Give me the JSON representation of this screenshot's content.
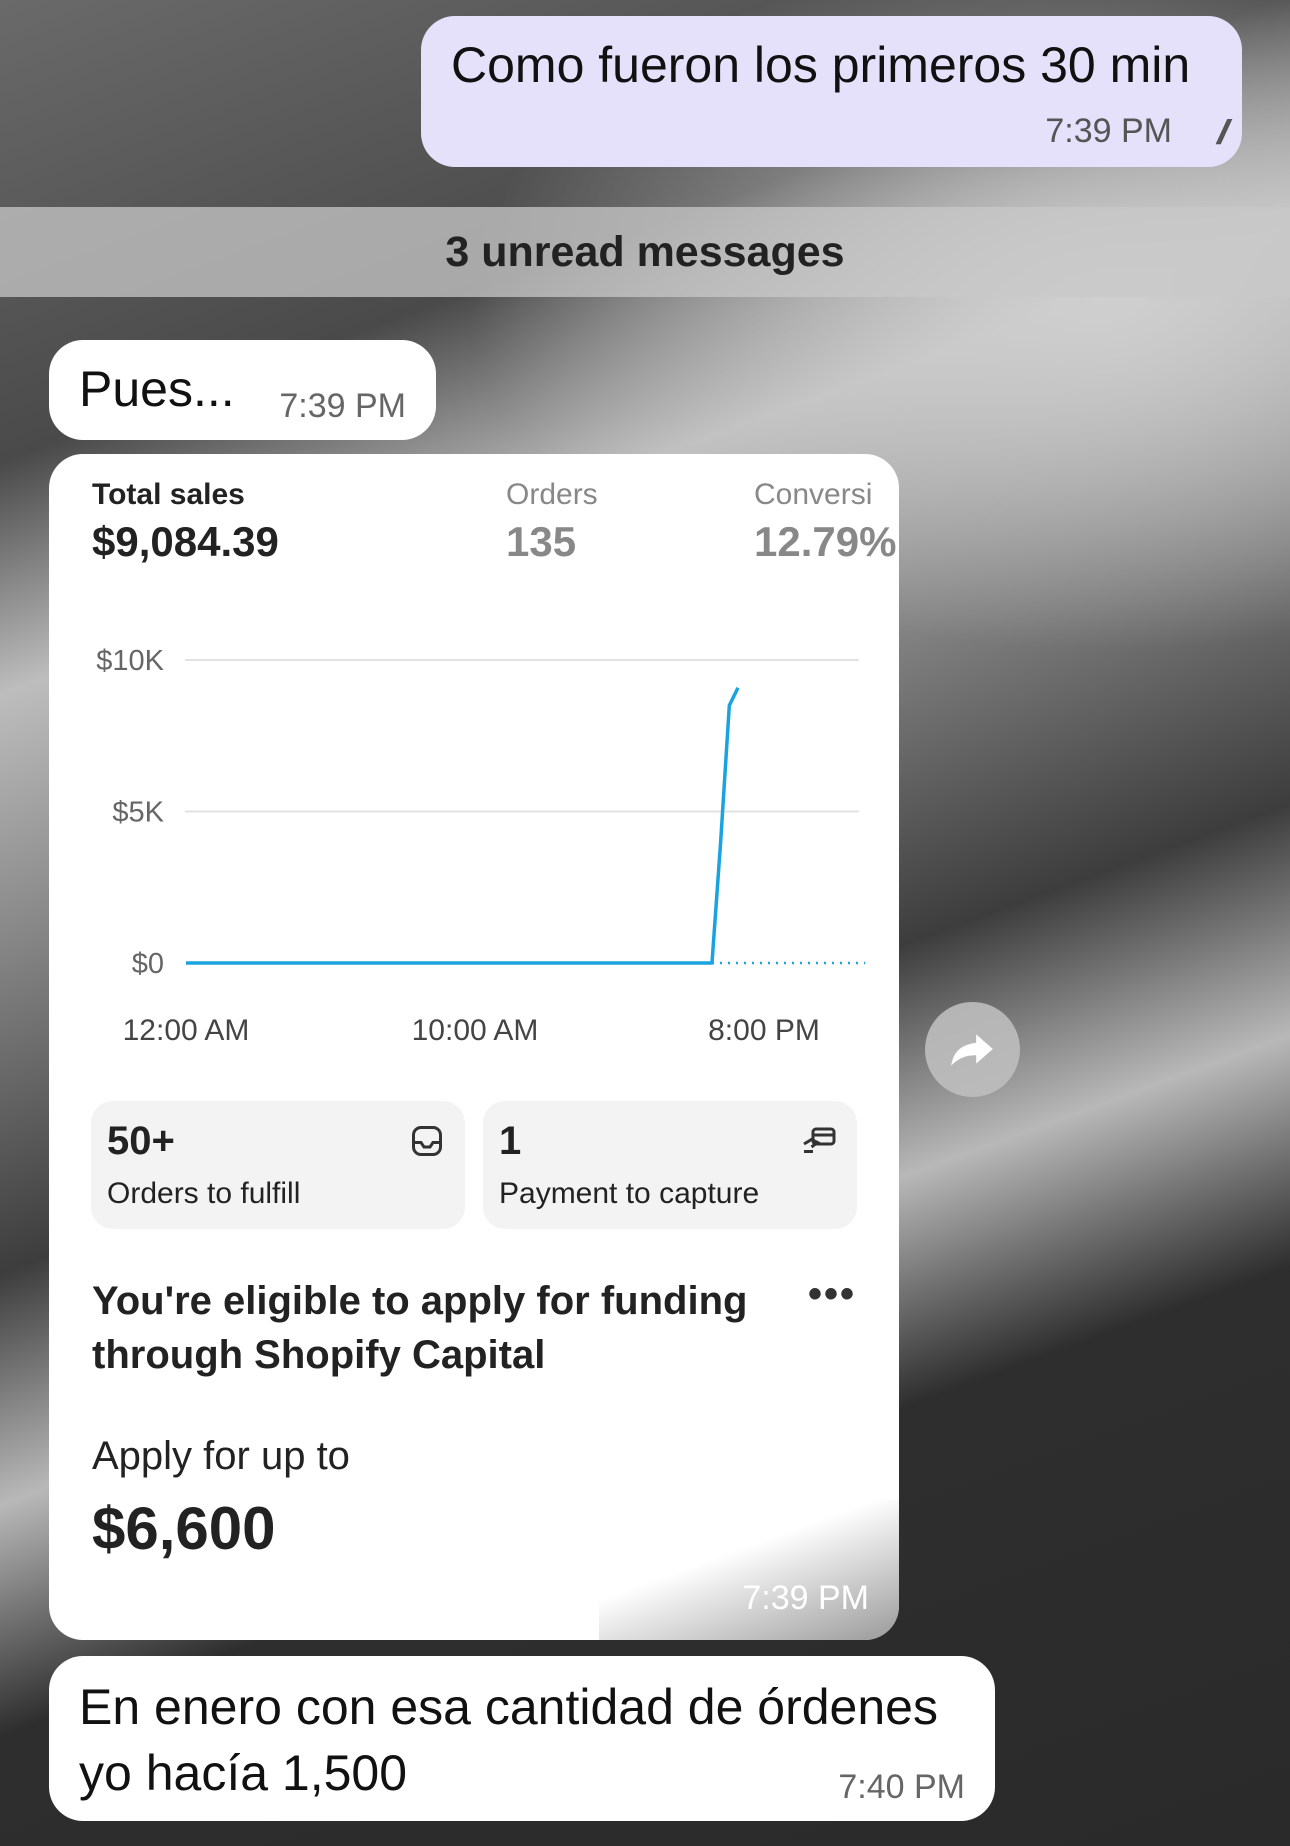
{
  "messages": {
    "outgoing": {
      "text": "Como fueron los primeros 30 min",
      "time": "7:39 PM",
      "status_icon": "double-check-icon"
    },
    "unread_divider": "3 unread messages",
    "incoming_1": {
      "text": "Pues...",
      "time": "7:39 PM"
    },
    "screenshot_time": "7:39 PM",
    "incoming_2": {
      "text_line1": "En enero con esa cantidad de órdenes",
      "text_line2": "yo hacía 1,500",
      "time": "7:40 PM"
    }
  },
  "shopify": {
    "metrics": [
      {
        "label": "Total sales",
        "value": "$9,084.39"
      },
      {
        "label": "Orders",
        "value": "135"
      },
      {
        "label": "Conversi",
        "value": "12.79%"
      }
    ],
    "tiles": [
      {
        "value": "50+",
        "label": "Orders to fulfill",
        "icon": "inbox-icon"
      },
      {
        "value": "1",
        "label": "Payment to capture",
        "icon": "card-hand-icon"
      }
    ],
    "capital": {
      "title_line1": "You're eligible to apply for funding",
      "title_line2": "through Shopify Capital",
      "apply_label": "Apply for up to",
      "amount": "$6,600"
    }
  },
  "chart_data": {
    "type": "line",
    "y_ticks": [
      "$10K",
      "$5K",
      "$0"
    ],
    "x_ticks": [
      "12:00 AM",
      "10:00 AM",
      "8:00 PM"
    ],
    "ylim": [
      0,
      10000
    ],
    "xlim_hours": [
      0,
      23.5
    ],
    "series": [
      {
        "color": "#1aa3e0",
        "x_hours": [
          0,
          18.2,
          18.5,
          18.8,
          19.1
        ],
        "values": [
          0,
          0,
          4000,
          8500,
          9084.39
        ]
      }
    ],
    "projection": {
      "style": "dotted",
      "x_hours": [
        18.2,
        23.5
      ],
      "values": [
        0,
        0
      ]
    },
    "grid": true
  },
  "colors": {
    "outgoing_bubble": "#e6e1fb",
    "line": "#1aa3e0"
  }
}
